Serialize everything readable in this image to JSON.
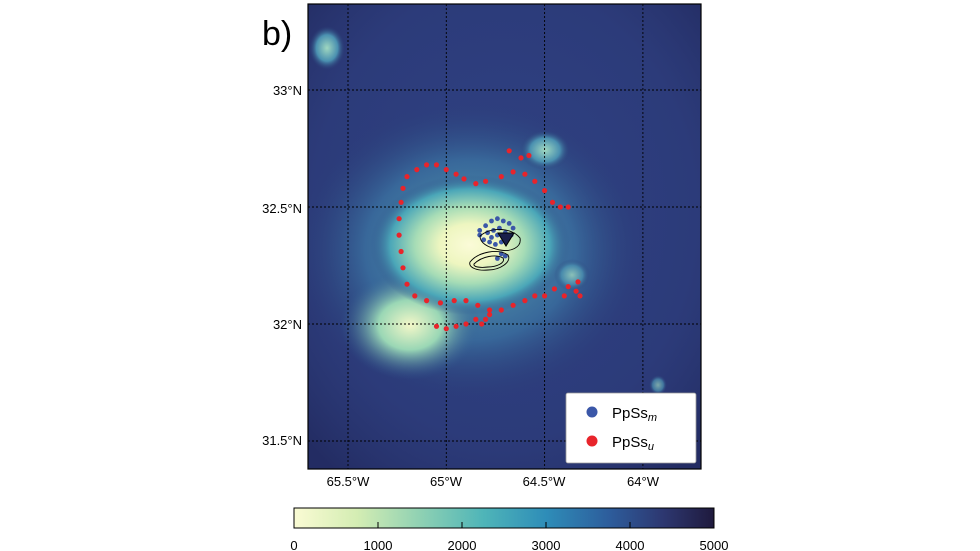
{
  "panel_label": "b)",
  "map": {
    "lat_labels": [
      "33°N",
      "32.5°N",
      "32°N",
      "31.5°N"
    ],
    "lon_labels": [
      "65.5°W",
      "65°W",
      "64.5°W",
      "64°W"
    ],
    "lat_values": [
      33.0,
      32.5,
      32.0,
      31.5
    ],
    "lon_values": [
      -65.5,
      -65.0,
      -64.5,
      -64.0
    ],
    "gridlines": true,
    "station_marker": "inverted-triangle",
    "colormap": "YlGnBu-dark (light yellow = shallow, dark navy = deep)"
  },
  "legend": {
    "placement": "bottom-right",
    "items": [
      {
        "label": "PpSs",
        "subscript": "m",
        "color": "#3b57a8"
      },
      {
        "label": "PpSs",
        "subscript": "u",
        "color": "#e8242b"
      }
    ]
  },
  "colorbar": {
    "tick_labels": [
      "0",
      "1000",
      "2000",
      "3000",
      "4000",
      "5000"
    ],
    "range": [
      0,
      5000
    ]
  },
  "chart_data": {
    "type": "scatter",
    "title": "",
    "xlabel": "",
    "ylabel": "",
    "xlim": [
      -65.7,
      -63.7
    ],
    "ylim": [
      31.4,
      33.4
    ],
    "color_range": [
      0,
      5000
    ],
    "series": [
      {
        "name": "PpSsm",
        "color": "#3b57a8",
        "points": [
          [
            -64.83,
            32.4
          ],
          [
            -64.8,
            32.42
          ],
          [
            -64.77,
            32.44
          ],
          [
            -64.74,
            32.45
          ],
          [
            -64.71,
            32.44
          ],
          [
            -64.68,
            32.43
          ],
          [
            -64.66,
            32.41
          ],
          [
            -64.67,
            32.38
          ],
          [
            -64.69,
            32.36
          ],
          [
            -64.72,
            32.35
          ],
          [
            -64.75,
            32.34
          ],
          [
            -64.78,
            32.35
          ],
          [
            -64.81,
            32.36
          ],
          [
            -64.83,
            32.38
          ],
          [
            -64.79,
            32.39
          ],
          [
            -64.76,
            32.4
          ],
          [
            -64.73,
            32.41
          ],
          [
            -64.7,
            32.39
          ],
          [
            -64.77,
            32.37
          ],
          [
            -64.74,
            32.38
          ],
          [
            -64.72,
            32.3
          ],
          [
            -64.74,
            32.28
          ],
          [
            -64.7,
            32.29
          ]
        ]
      },
      {
        "name": "PpSsu",
        "color": "#e8242b",
        "points": [
          [
            -65.2,
            32.63
          ],
          [
            -65.15,
            32.66
          ],
          [
            -65.1,
            32.68
          ],
          [
            -65.05,
            32.68
          ],
          [
            -65.0,
            32.66
          ],
          [
            -64.95,
            32.64
          ],
          [
            -64.91,
            32.62
          ],
          [
            -64.85,
            32.6
          ],
          [
            -64.8,
            32.61
          ],
          [
            -64.72,
            32.63
          ],
          [
            -64.66,
            32.65
          ],
          [
            -64.6,
            32.64
          ],
          [
            -64.55,
            32.61
          ],
          [
            -64.5,
            32.57
          ],
          [
            -64.46,
            32.52
          ],
          [
            -64.42,
            32.5
          ],
          [
            -64.38,
            32.5
          ],
          [
            -64.62,
            32.71
          ],
          [
            -64.68,
            32.74
          ],
          [
            -64.58,
            32.72
          ],
          [
            -65.22,
            32.58
          ],
          [
            -65.23,
            32.52
          ],
          [
            -65.24,
            32.45
          ],
          [
            -65.24,
            32.38
          ],
          [
            -65.23,
            32.31
          ],
          [
            -65.22,
            32.24
          ],
          [
            -65.2,
            32.17
          ],
          [
            -65.16,
            32.12
          ],
          [
            -65.1,
            32.1
          ],
          [
            -65.03,
            32.09
          ],
          [
            -64.96,
            32.1
          ],
          [
            -64.9,
            32.1
          ],
          [
            -64.84,
            32.08
          ],
          [
            -64.78,
            32.06
          ],
          [
            -64.72,
            32.06
          ],
          [
            -64.66,
            32.08
          ],
          [
            -64.6,
            32.1
          ],
          [
            -64.55,
            32.12
          ],
          [
            -64.5,
            32.12
          ],
          [
            -64.45,
            32.15
          ],
          [
            -64.38,
            32.16
          ],
          [
            -64.33,
            32.18
          ],
          [
            -64.34,
            32.14
          ],
          [
            -64.32,
            32.12
          ],
          [
            -64.4,
            32.12
          ],
          [
            -65.05,
            31.99
          ],
          [
            -65.0,
            31.98
          ],
          [
            -64.95,
            31.99
          ],
          [
            -64.9,
            32.0
          ],
          [
            -64.85,
            32.02
          ],
          [
            -64.8,
            32.02
          ],
          [
            -64.78,
            32.04
          ],
          [
            -64.82,
            32.0
          ]
        ]
      }
    ]
  }
}
